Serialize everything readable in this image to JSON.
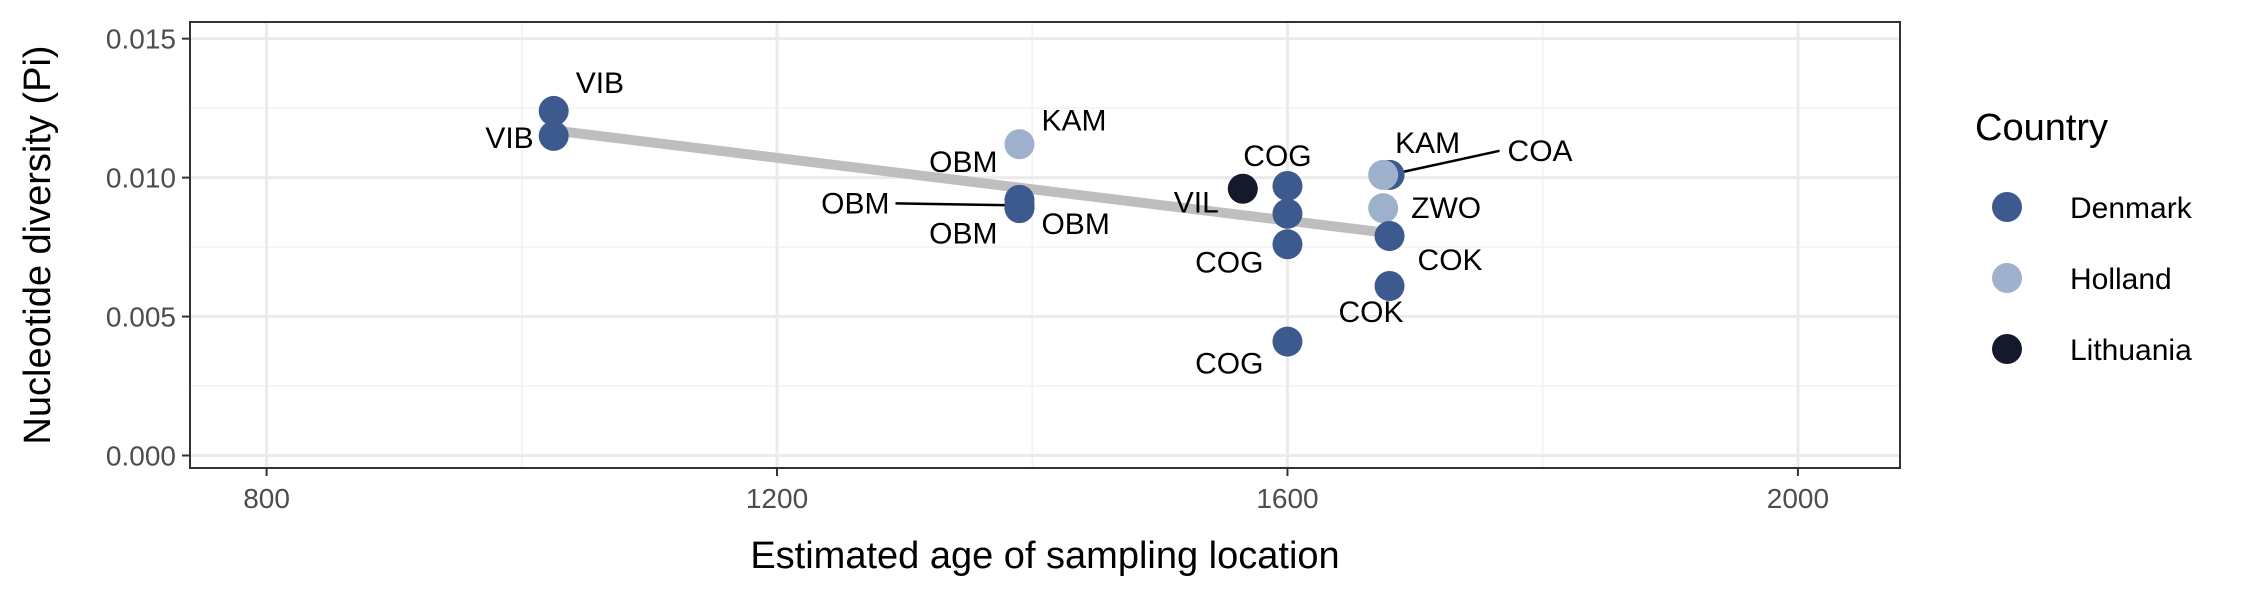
{
  "chart_data": {
    "type": "scatter",
    "xlabel": "Estimated age of sampling location",
    "ylabel": "Nucleotide diversity (Pi)",
    "xlim": [
      740,
      2080
    ],
    "ylim": [
      -0.00045,
      0.0156
    ],
    "xticks": [
      800,
      1200,
      1600,
      2000
    ],
    "yticks": [
      0.0,
      0.005,
      0.01,
      0.015
    ],
    "xtick_labels": [
      "800",
      "1200",
      "1600",
      "2000"
    ],
    "ytick_labels": [
      "0.000",
      "0.005",
      "0.010",
      "0.015"
    ],
    "grid": true,
    "legend": {
      "title": "Country",
      "position": "right",
      "entries": [
        {
          "name": "Denmark",
          "color": "#3d5a8f"
        },
        {
          "name": "Holland",
          "color": "#9fb0cd"
        },
        {
          "name": "Lithuania",
          "color": "#141a2c"
        }
      ]
    },
    "trend_line": {
      "x": [
        1025,
        1680
      ],
      "y": [
        0.0117,
        0.008
      ],
      "color": "#bebebe"
    },
    "points": [
      {
        "x": 1025,
        "y": 0.0124,
        "country": "Denmark",
        "label": "VIB"
      },
      {
        "x": 1025,
        "y": 0.0115,
        "country": "Denmark",
        "label": "VIB"
      },
      {
        "x": 1390,
        "y": 0.0112,
        "country": "Holland",
        "label": "KAM"
      },
      {
        "x": 1390,
        "y": 0.0092,
        "country": "Denmark",
        "label": "OBM"
      },
      {
        "x": 1390,
        "y": 0.009,
        "country": "Denmark",
        "label": "OBM"
      },
      {
        "x": 1390,
        "y": 0.009,
        "country": "Denmark",
        "label": "OBM"
      },
      {
        "x": 1390,
        "y": 0.0089,
        "country": "Denmark",
        "label": "OBM"
      },
      {
        "x": 1565,
        "y": 0.0096,
        "country": "Lithuania",
        "label": "VIL"
      },
      {
        "x": 1600,
        "y": 0.0097,
        "country": "Denmark",
        "label": "COG"
      },
      {
        "x": 1600,
        "y": 0.0087,
        "country": "Denmark",
        "label": ""
      },
      {
        "x": 1600,
        "y": 0.0076,
        "country": "Denmark",
        "label": "COG"
      },
      {
        "x": 1600,
        "y": 0.0041,
        "country": "Denmark",
        "label": "COG"
      },
      {
        "x": 1680,
        "y": 0.0101,
        "country": "Denmark",
        "label": "COA"
      },
      {
        "x": 1675,
        "y": 0.0101,
        "country": "Holland",
        "label": "KAM"
      },
      {
        "x": 1675,
        "y": 0.0089,
        "country": "Holland",
        "label": "ZWO"
      },
      {
        "x": 1680,
        "y": 0.0079,
        "country": "Denmark",
        "label": ""
      },
      {
        "x": 1680,
        "y": 0.0061,
        "country": "Denmark",
        "label": "COK"
      }
    ],
    "labels": [
      {
        "text": "VIB",
        "anchor": "start",
        "dx": 22,
        "dy": -18
      },
      {
        "text": "VIB",
        "anchor": "end",
        "dx": -20,
        "dy": 12
      },
      {
        "text": "KAM",
        "anchor": "start",
        "dx": 22,
        "dy": -14
      },
      {
        "text": "OBM",
        "anchor": "end",
        "dx": -22,
        "dy": -28
      },
      {
        "text": "OBM",
        "anchor": "end",
        "dx": -130,
        "dy": 8,
        "leader": true
      },
      {
        "text": "OBM",
        "anchor": "end",
        "dx": -22,
        "dy": 38
      },
      {
        "text": "OBM",
        "anchor": "start",
        "dx": 22,
        "dy": 26
      },
      {
        "text": "VIL",
        "anchor": "end",
        "dx": -24,
        "dy": 24
      },
      {
        "text": "COG",
        "anchor": "middle",
        "dx": -10,
        "dy": -20
      },
      {
        "text": "",
        "anchor": "start",
        "dx": 0,
        "dy": 0
      },
      {
        "text": "COG",
        "anchor": "end",
        "dx": -24,
        "dy": 28
      },
      {
        "text": "COG",
        "anchor": "end",
        "dx": -24,
        "dy": 32
      },
      {
        "text": "COA",
        "anchor": "start",
        "dx": 118,
        "dy": -14,
        "leader": true
      },
      {
        "text": "KAM",
        "anchor": "start",
        "dx": 12,
        "dy": -22
      },
      {
        "text": "ZWO",
        "anchor": "start",
        "dx": 28,
        "dy": 10
      },
      {
        "text": "",
        "anchor": "start",
        "dx": 0,
        "dy": 0
      },
      {
        "text": "COK",
        "anchor": "start",
        "dx": 28,
        "dy": -16
      }
    ],
    "extra_labels": [
      {
        "text": "COK",
        "x": 1640,
        "y": 0.0048,
        "anchor": "start"
      }
    ]
  }
}
